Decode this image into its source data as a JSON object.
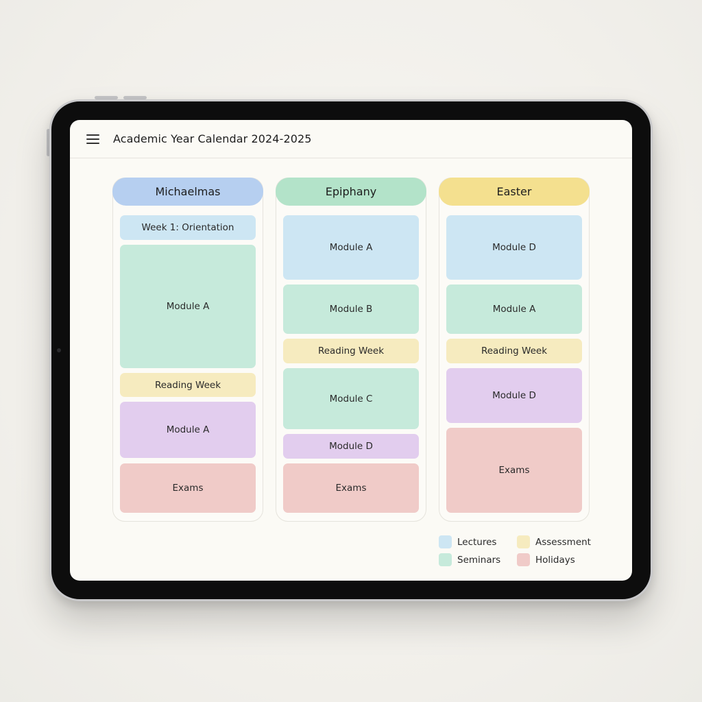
{
  "app": {
    "title": "Academic Year Calendar 2024-2025",
    "menu_icon": "hamburger-menu-icon"
  },
  "colors": {
    "michaelmas_header": "#b6cff0",
    "epiphany_header": "#b3e3c9",
    "easter_header": "#f4e08f",
    "lectures": "#cde6f3",
    "seminars": "#c6eadb",
    "assessment": "#f6ebbf",
    "modules": "#e2cdee",
    "holidays": "#f0cbc8"
  },
  "terms": [
    {
      "name": "Michaelmas",
      "blocks": [
        {
          "label": "Week 1: Orientation"
        },
        {
          "label": "Module A"
        },
        {
          "label": "Reading Week"
        },
        {
          "label": "Module A"
        },
        {
          "label": "Exams"
        }
      ]
    },
    {
      "name": "Epiphany",
      "blocks": [
        {
          "label": "Module A"
        },
        {
          "label": "Module B"
        },
        {
          "label": "Reading Week"
        },
        {
          "label": "Module C"
        },
        {
          "label": "Module D"
        },
        {
          "label": "Exams"
        }
      ]
    },
    {
      "name": "Easter",
      "blocks": [
        {
          "label": "Module D"
        },
        {
          "label": "Module A"
        },
        {
          "label": "Reading Week"
        },
        {
          "label": "Module D"
        },
        {
          "label": "Exams"
        }
      ]
    }
  ],
  "legend": [
    {
      "label": "Lectures"
    },
    {
      "label": "Assessment"
    },
    {
      "label": "Seminars"
    },
    {
      "label": "Holidays"
    }
  ]
}
